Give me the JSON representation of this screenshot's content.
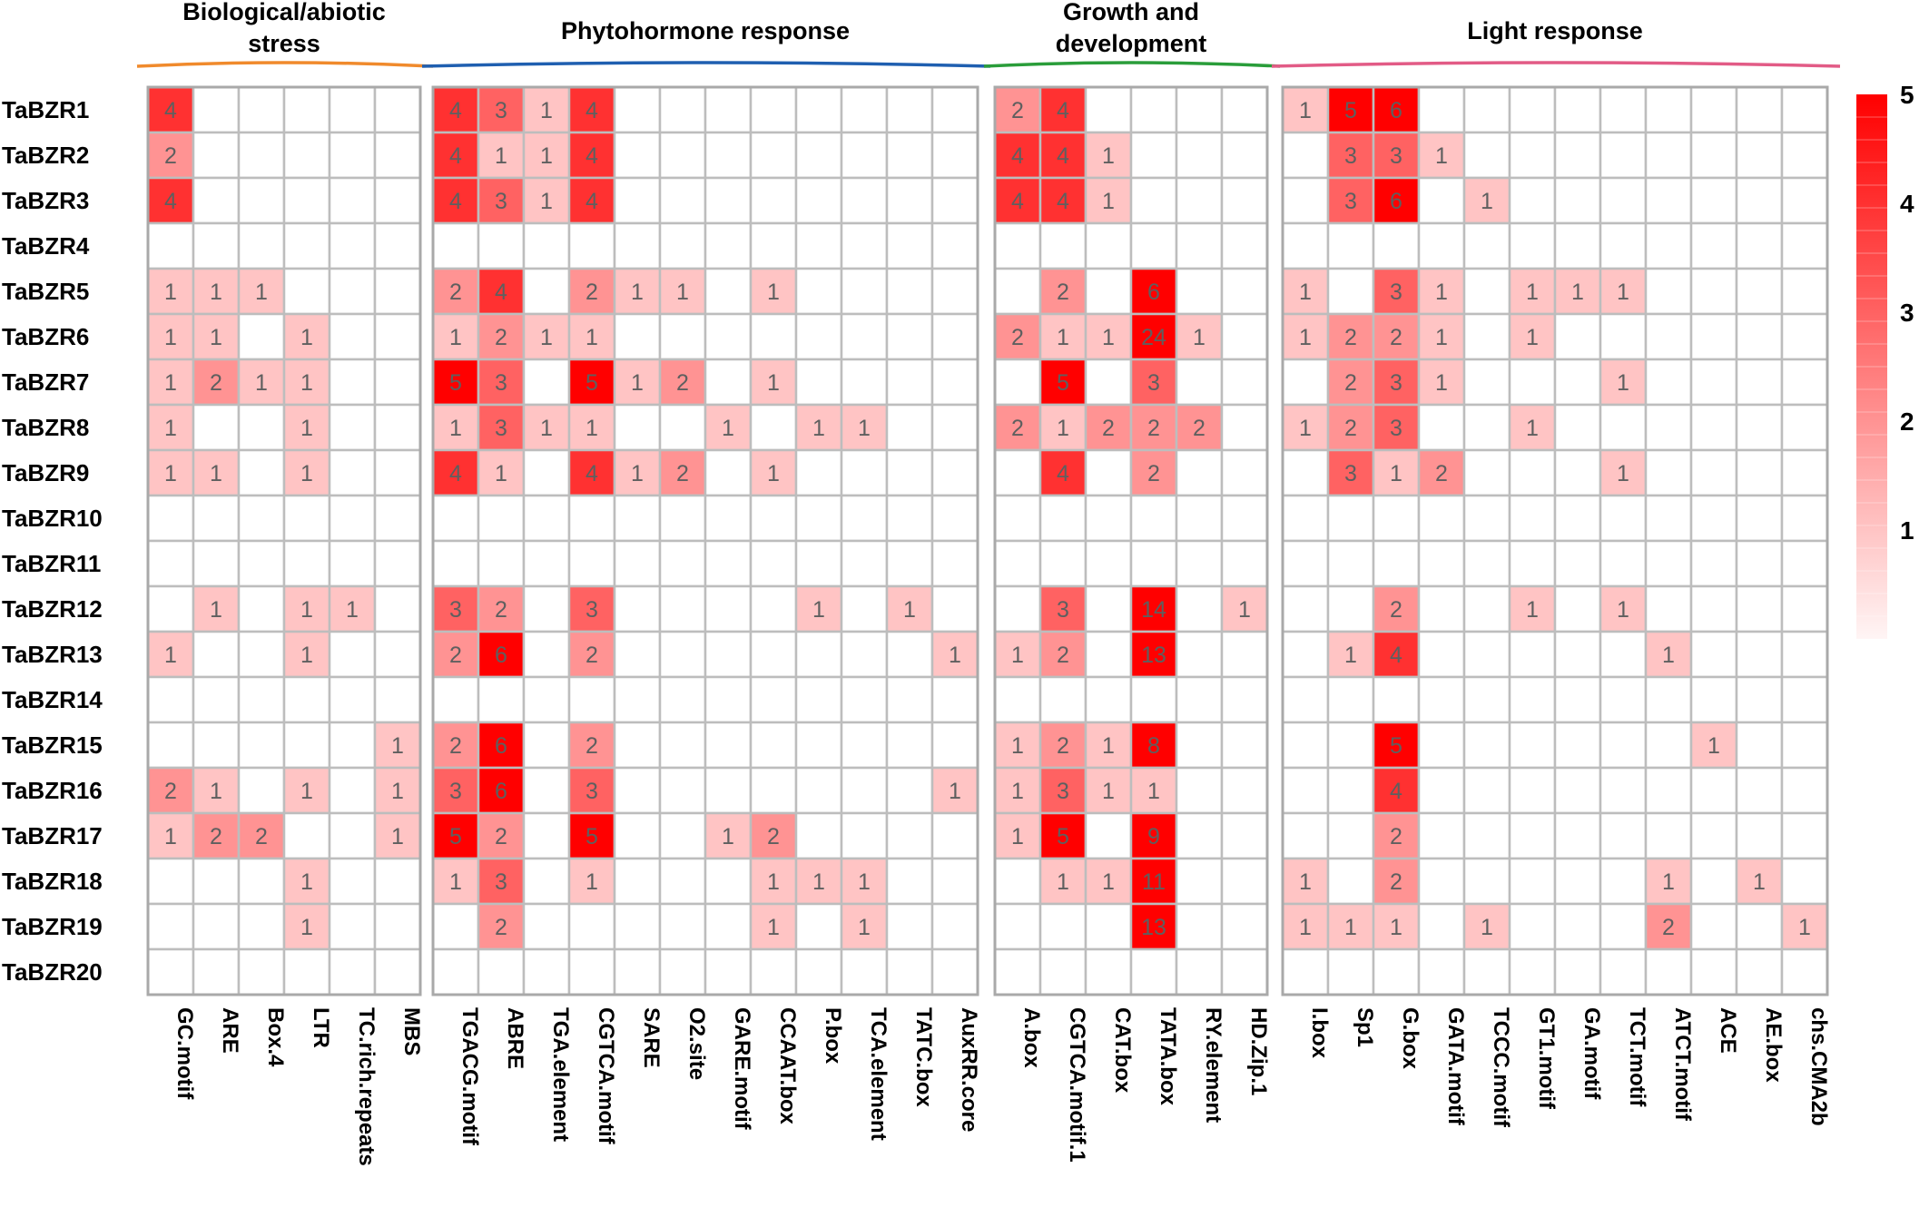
{
  "chart_data": {
    "type": "heatmap",
    "title": "",
    "rows": [
      "TaBZR1",
      "TaBZR2",
      "TaBZR3",
      "TaBZR4",
      "TaBZR5",
      "TaBZR6",
      "TaBZR7",
      "TaBZR8",
      "TaBZR9",
      "TaBZR10",
      "TaBZR11",
      "TaBZR12",
      "TaBZR13",
      "TaBZR14",
      "TaBZR15",
      "TaBZR16",
      "TaBZR17",
      "TaBZR18",
      "TaBZR19",
      "TaBZR20"
    ],
    "groups": [
      {
        "name": "Biological/abiotic stress",
        "title_lines": [
          "Biological/abiotic",
          "stress"
        ],
        "color": "#f08a2c",
        "columns": [
          "GC.motif",
          "ARE",
          "Box.4",
          "LTR",
          "TC.rich.repeats",
          "MBS"
        ],
        "values": [
          [
            4,
            0,
            0,
            0,
            0,
            0
          ],
          [
            2,
            0,
            0,
            0,
            0,
            0
          ],
          [
            4,
            0,
            0,
            0,
            0,
            0
          ],
          [
            0,
            0,
            0,
            0,
            0,
            0
          ],
          [
            1,
            1,
            1,
            0,
            0,
            0
          ],
          [
            1,
            1,
            0,
            1,
            0,
            0
          ],
          [
            1,
            2,
            1,
            1,
            0,
            0
          ],
          [
            1,
            0,
            0,
            1,
            0,
            0
          ],
          [
            1,
            1,
            0,
            1,
            0,
            0
          ],
          [
            0,
            0,
            0,
            0,
            0,
            0
          ],
          [
            0,
            0,
            0,
            0,
            0,
            0
          ],
          [
            0,
            1,
            0,
            1,
            1,
            0
          ],
          [
            1,
            0,
            0,
            1,
            0,
            0
          ],
          [
            0,
            0,
            0,
            0,
            0,
            0
          ],
          [
            0,
            0,
            0,
            0,
            0,
            1
          ],
          [
            2,
            1,
            0,
            1,
            0,
            1
          ],
          [
            1,
            2,
            2,
            0,
            0,
            1
          ],
          [
            0,
            0,
            0,
            1,
            0,
            0
          ],
          [
            0,
            0,
            0,
            1,
            0,
            0
          ],
          [
            0,
            0,
            0,
            0,
            0,
            0
          ]
        ]
      },
      {
        "name": "Phytohormone response",
        "title_lines": [
          "Phytohormone response"
        ],
        "color": "#1f5fb0",
        "columns": [
          "TGACG.motif",
          "ABRE",
          "TGA.element",
          "CGTCA.motif",
          "SARE",
          "O2.site",
          "GARE.motif",
          "CCAAT.box",
          "P.box",
          "TCA.element",
          "TATC.box",
          "AuxRR.core"
        ],
        "values": [
          [
            4,
            3,
            1,
            4,
            0,
            0,
            0,
            0,
            0,
            0,
            0,
            0
          ],
          [
            4,
            1,
            1,
            4,
            0,
            0,
            0,
            0,
            0,
            0,
            0,
            0
          ],
          [
            4,
            3,
            1,
            4,
            0,
            0,
            0,
            0,
            0,
            0,
            0,
            0
          ],
          [
            0,
            0,
            0,
            0,
            0,
            0,
            0,
            0,
            0,
            0,
            0,
            0
          ],
          [
            2,
            4,
            0,
            2,
            1,
            1,
            0,
            1,
            0,
            0,
            0,
            0
          ],
          [
            1,
            2,
            1,
            1,
            0,
            0,
            0,
            0,
            0,
            0,
            0,
            0
          ],
          [
            5,
            3,
            0,
            5,
            1,
            2,
            0,
            1,
            0,
            0,
            0,
            0
          ],
          [
            1,
            3,
            1,
            1,
            0,
            0,
            1,
            0,
            1,
            1,
            0,
            0
          ],
          [
            4,
            1,
            0,
            4,
            1,
            2,
            0,
            1,
            0,
            0,
            0,
            0
          ],
          [
            0,
            0,
            0,
            0,
            0,
            0,
            0,
            0,
            0,
            0,
            0,
            0
          ],
          [
            0,
            0,
            0,
            0,
            0,
            0,
            0,
            0,
            0,
            0,
            0,
            0
          ],
          [
            3,
            2,
            0,
            3,
            0,
            0,
            0,
            0,
            1,
            0,
            1,
            0
          ],
          [
            2,
            6,
            0,
            2,
            0,
            0,
            0,
            0,
            0,
            0,
            0,
            1
          ],
          [
            0,
            0,
            0,
            0,
            0,
            0,
            0,
            0,
            0,
            0,
            0,
            0
          ],
          [
            2,
            6,
            0,
            2,
            0,
            0,
            0,
            0,
            0,
            0,
            0,
            0
          ],
          [
            3,
            6,
            0,
            3,
            0,
            0,
            0,
            0,
            0,
            0,
            0,
            1
          ],
          [
            5,
            2,
            0,
            5,
            0,
            0,
            1,
            2,
            0,
            0,
            0,
            0
          ],
          [
            1,
            3,
            0,
            1,
            0,
            0,
            0,
            1,
            1,
            1,
            0,
            0
          ],
          [
            0,
            2,
            0,
            0,
            0,
            0,
            0,
            1,
            0,
            1,
            0,
            0
          ],
          [
            0,
            0,
            0,
            0,
            0,
            0,
            0,
            0,
            0,
            0,
            0,
            0
          ]
        ]
      },
      {
        "name": "Growth and development",
        "title_lines": [
          "Growth and",
          "development"
        ],
        "color": "#2a9d3a",
        "columns": [
          "A.box",
          "CGTCA.motif.1",
          "CAT.box",
          "TATA.box",
          "RY.element",
          "HD.Zip.1"
        ],
        "values": [
          [
            2,
            4,
            0,
            0,
            0,
            0
          ],
          [
            4,
            4,
            1,
            0,
            0,
            0
          ],
          [
            4,
            4,
            1,
            0,
            0,
            0
          ],
          [
            0,
            0,
            0,
            0,
            0,
            0
          ],
          [
            0,
            2,
            0,
            6,
            0,
            0
          ],
          [
            2,
            1,
            1,
            24,
            1,
            0
          ],
          [
            0,
            5,
            0,
            3,
            0,
            0
          ],
          [
            2,
            1,
            2,
            2,
            2,
            0
          ],
          [
            0,
            4,
            0,
            2,
            0,
            0
          ],
          [
            0,
            0,
            0,
            0,
            0,
            0
          ],
          [
            0,
            0,
            0,
            0,
            0,
            0
          ],
          [
            0,
            3,
            0,
            14,
            0,
            1
          ],
          [
            1,
            2,
            0,
            13,
            0,
            0
          ],
          [
            0,
            0,
            0,
            0,
            0,
            0
          ],
          [
            1,
            2,
            1,
            8,
            0,
            0
          ],
          [
            1,
            3,
            1,
            1,
            0,
            0
          ],
          [
            1,
            5,
            0,
            9,
            0,
            0
          ],
          [
            0,
            1,
            1,
            11,
            0,
            0
          ],
          [
            0,
            0,
            0,
            13,
            0,
            0
          ],
          [
            0,
            0,
            0,
            0,
            0,
            0
          ]
        ]
      },
      {
        "name": "Light response",
        "title_lines": [
          "Light response"
        ],
        "color": "#e25b86",
        "columns": [
          "I.box",
          "Sp1",
          "G.box",
          "GATA.motif",
          "TCCC.motif",
          "GT1.motif",
          "GA.motif",
          "TCT.motif",
          "ATCT.motif",
          "ACE",
          "AE.box",
          "chs.CMA2b"
        ],
        "values": [
          [
            1,
            5,
            6,
            0,
            0,
            0,
            0,
            0,
            0,
            0,
            0,
            0
          ],
          [
            0,
            3,
            3,
            1,
            0,
            0,
            0,
            0,
            0,
            0,
            0,
            0
          ],
          [
            0,
            3,
            6,
            0,
            1,
            0,
            0,
            0,
            0,
            0,
            0,
            0
          ],
          [
            0,
            0,
            0,
            0,
            0,
            0,
            0,
            0,
            0,
            0,
            0,
            0
          ],
          [
            1,
            0,
            3,
            1,
            0,
            1,
            1,
            1,
            0,
            0,
            0,
            0
          ],
          [
            1,
            2,
            2,
            1,
            0,
            1,
            0,
            0,
            0,
            0,
            0,
            0
          ],
          [
            0,
            2,
            3,
            1,
            0,
            0,
            0,
            1,
            0,
            0,
            0,
            0
          ],
          [
            1,
            2,
            3,
            0,
            0,
            1,
            0,
            0,
            0,
            0,
            0,
            0
          ],
          [
            0,
            3,
            1,
            2,
            0,
            0,
            0,
            1,
            0,
            0,
            0,
            0
          ],
          [
            0,
            0,
            0,
            0,
            0,
            0,
            0,
            0,
            0,
            0,
            0,
            0
          ],
          [
            0,
            0,
            0,
            0,
            0,
            0,
            0,
            0,
            0,
            0,
            0,
            0
          ],
          [
            0,
            0,
            2,
            0,
            0,
            1,
            0,
            1,
            0,
            0,
            0,
            0
          ],
          [
            0,
            1,
            4,
            0,
            0,
            0,
            0,
            0,
            1,
            0,
            0,
            0
          ],
          [
            0,
            0,
            0,
            0,
            0,
            0,
            0,
            0,
            0,
            0,
            0,
            0
          ],
          [
            0,
            0,
            5,
            0,
            0,
            0,
            0,
            0,
            0,
            1,
            0,
            0
          ],
          [
            0,
            0,
            4,
            0,
            0,
            0,
            0,
            0,
            0,
            0,
            0,
            0
          ],
          [
            0,
            0,
            2,
            0,
            0,
            0,
            0,
            0,
            0,
            0,
            0,
            0
          ],
          [
            1,
            0,
            2,
            0,
            0,
            0,
            0,
            0,
            1,
            0,
            1,
            0
          ],
          [
            1,
            1,
            1,
            0,
            1,
            0,
            0,
            0,
            2,
            0,
            0,
            1
          ],
          [
            0,
            0,
            0,
            0,
            0,
            0,
            0,
            0,
            0,
            0,
            0,
            0
          ]
        ]
      }
    ],
    "color_scale": {
      "min": 0,
      "max": 5,
      "low_color": "#fff5f5",
      "high_color": "#ff0000",
      "empty_color": "#ffffff",
      "ticks": [
        1,
        2,
        3,
        4,
        5
      ]
    },
    "grid_color": "#bdbdbd",
    "blank_value": 0
  }
}
